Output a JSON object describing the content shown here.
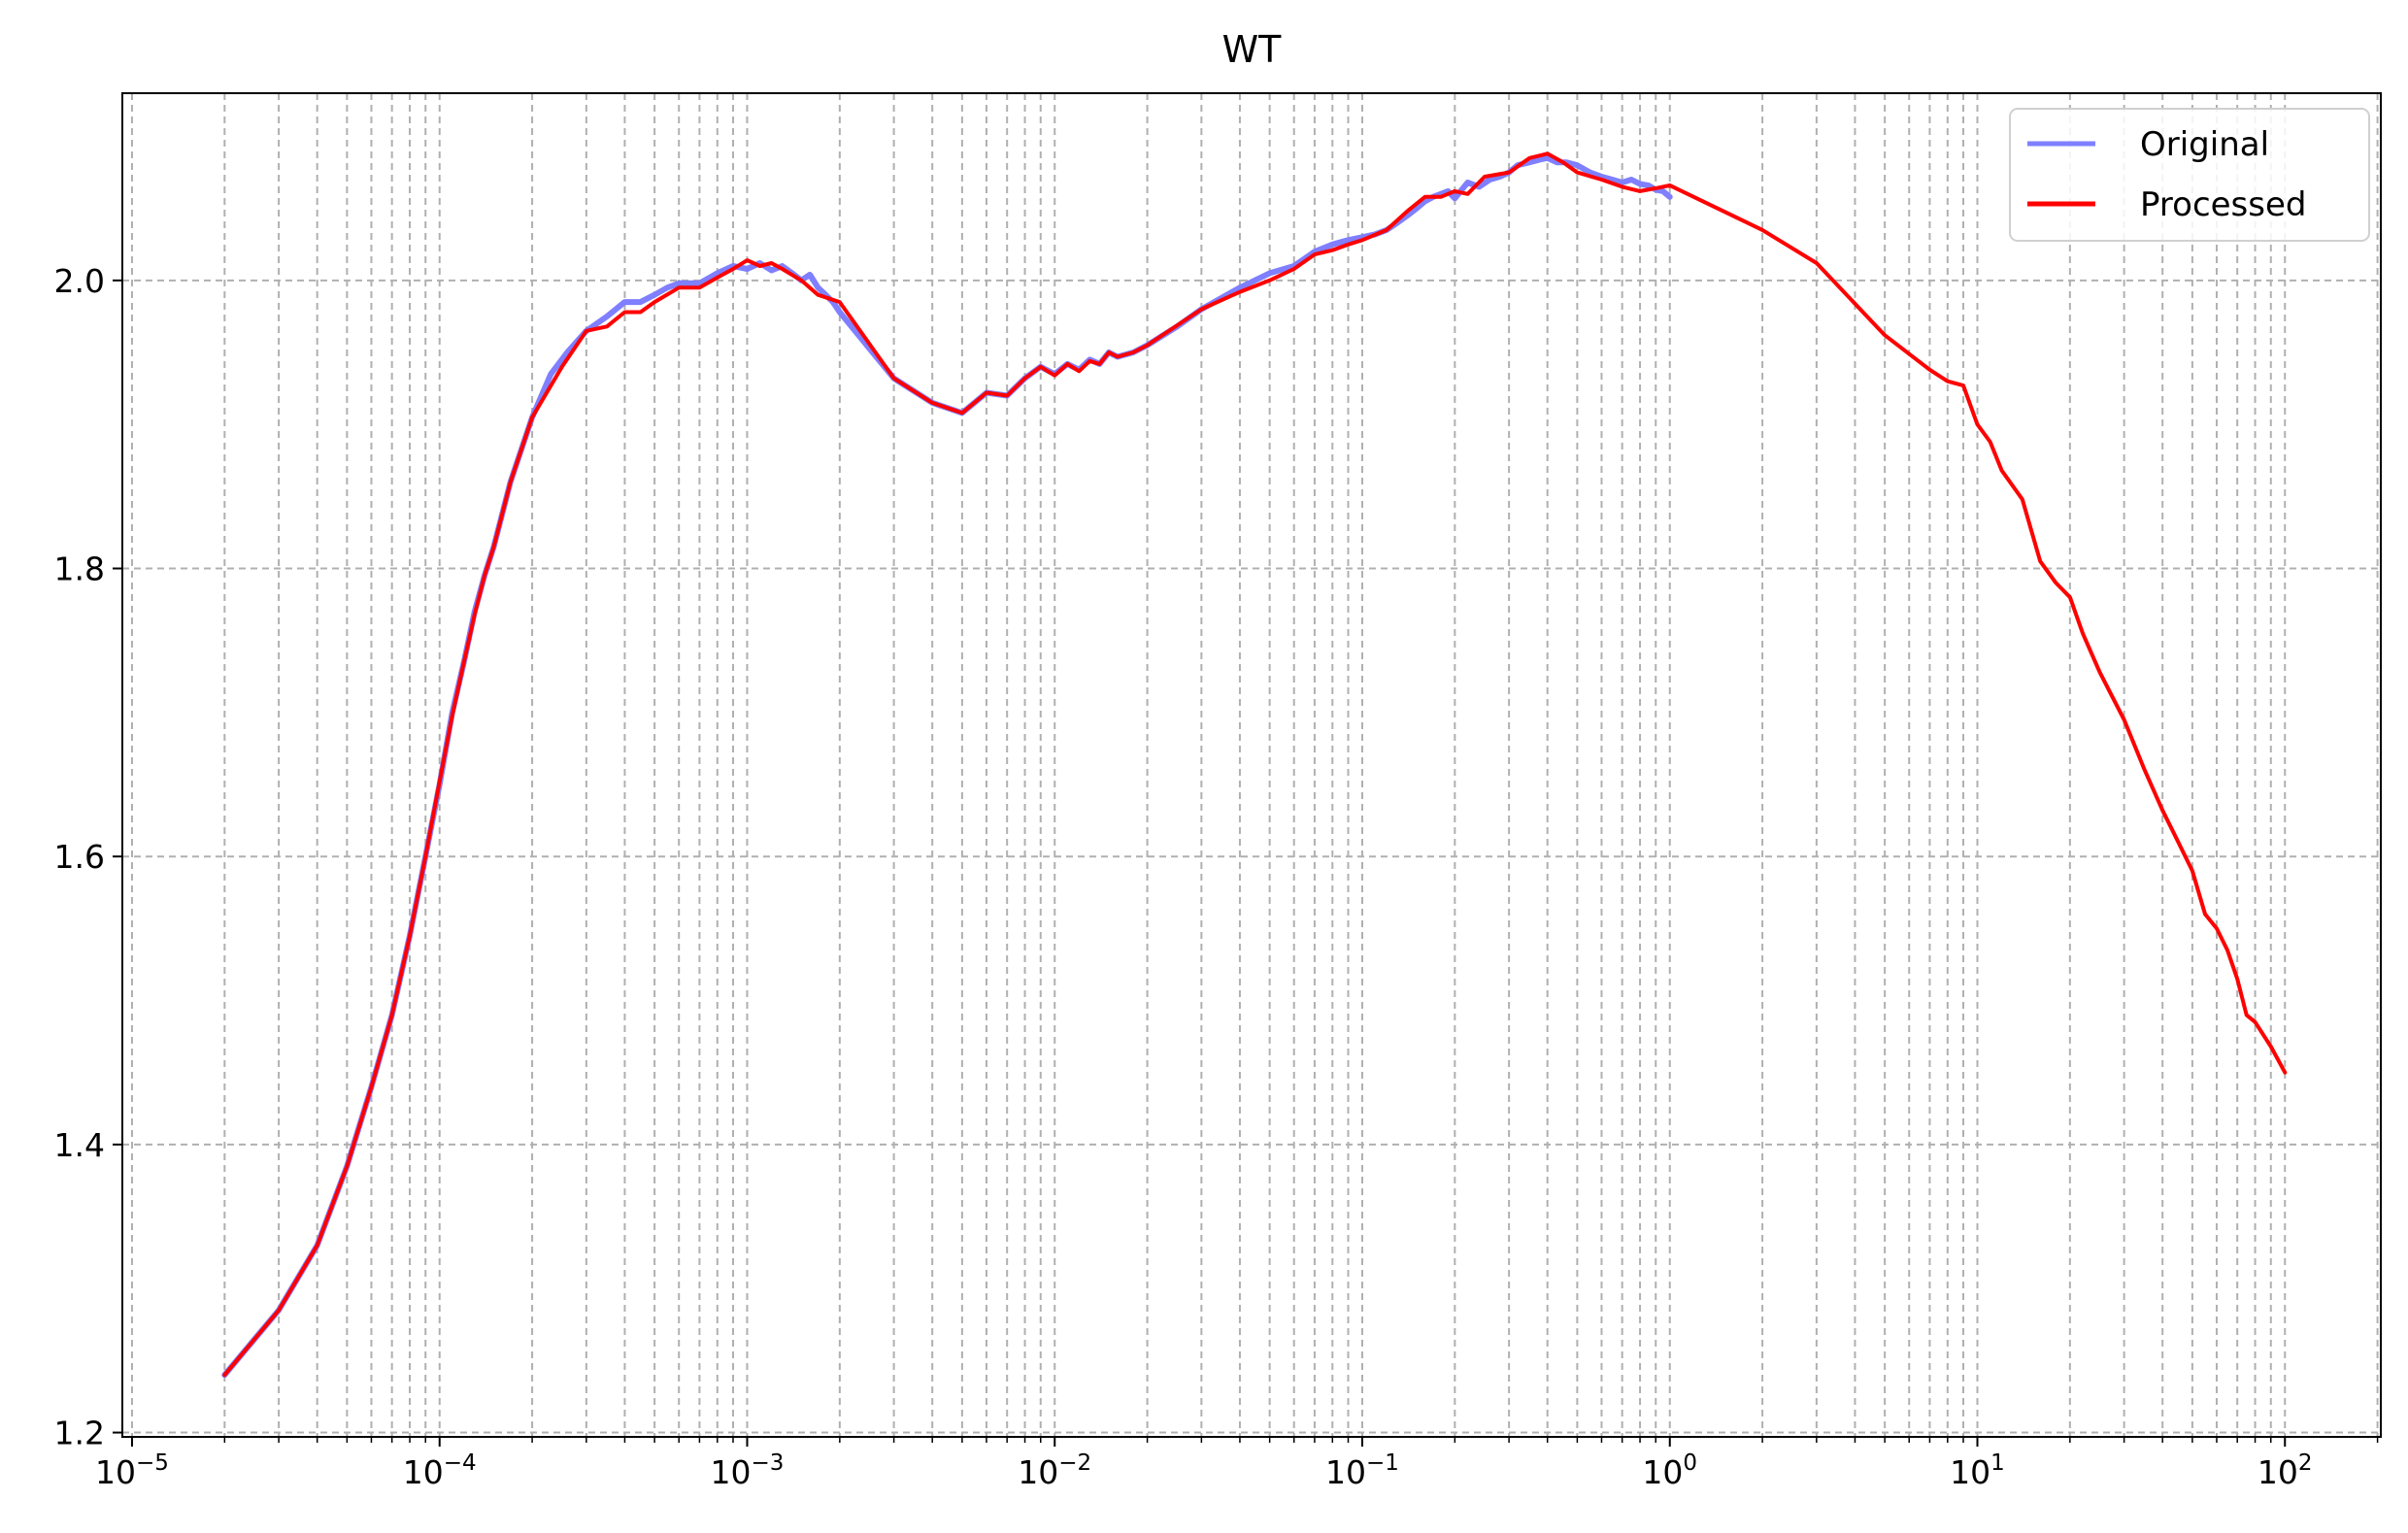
{
  "chart_data": {
    "type": "line",
    "title": "WT",
    "xlabel": "",
    "ylabel": "",
    "xscale": "log",
    "xlim": [
      9.3e-06,
      205
    ],
    "ylim": [
      1.197,
      2.13
    ],
    "x_ticks": [
      {
        "base": "10",
        "exp": "−5",
        "value": 1e-05
      },
      {
        "base": "10",
        "exp": "−4",
        "value": 0.0001
      },
      {
        "base": "10",
        "exp": "−3",
        "value": 0.001
      },
      {
        "base": "10",
        "exp": "−2",
        "value": 0.01
      },
      {
        "base": "10",
        "exp": "−1",
        "value": 0.1
      },
      {
        "base": "10",
        "exp": "0",
        "value": 1
      },
      {
        "base": "10",
        "exp": "1",
        "value": 10
      },
      {
        "base": "10",
        "exp": "2",
        "value": 100
      }
    ],
    "y_ticks": [
      {
        "label": "1.2",
        "value": 1.2
      },
      {
        "label": "1.4",
        "value": 1.4
      },
      {
        "label": "1.6",
        "value": 1.6
      },
      {
        "label": "1.8",
        "value": 1.8
      },
      {
        "label": "2.0",
        "value": 2.0
      }
    ],
    "grid": "major and minor, dashed",
    "legend_position": "top-right",
    "series": [
      {
        "name": "Original",
        "color": "#7f7fff",
        "x": [
          2e-05,
          3e-05,
          4e-05,
          5e-05,
          6e-05,
          7e-05,
          8e-05,
          9e-05,
          0.0001,
          0.00011,
          0.00012,
          0.00013,
          0.00014,
          0.00015,
          0.00017,
          0.0002,
          0.00023,
          0.00026,
          0.0003,
          0.00035,
          0.0004,
          0.00045,
          0.0005,
          0.00055,
          0.0006,
          0.0007,
          0.0008,
          0.0009,
          0.001,
          0.0011,
          0.0012,
          0.0013,
          0.0014,
          0.0015,
          0.0016,
          0.0017,
          0.0018,
          0.0019,
          0.002,
          0.003,
          0.004,
          0.005,
          0.006,
          0.007,
          0.008,
          0.009,
          0.01,
          0.011,
          0.012,
          0.013,
          0.014,
          0.015,
          0.016,
          0.018,
          0.02,
          0.025,
          0.03,
          0.04,
          0.05,
          0.06,
          0.07,
          0.08,
          0.09,
          0.1,
          0.11,
          0.12,
          0.13,
          0.14,
          0.15,
          0.16,
          0.17,
          0.18,
          0.19,
          0.2,
          0.22,
          0.24,
          0.26,
          0.28,
          0.3,
          0.32,
          0.35,
          0.38,
          0.4,
          0.43,
          0.46,
          0.5,
          0.55,
          0.6,
          0.65,
          0.7,
          0.75,
          0.8,
          0.85,
          0.9,
          0.95,
          1.0
        ],
        "y": [
          1.24,
          1.285,
          1.33,
          1.385,
          1.44,
          1.49,
          1.545,
          1.6,
          1.65,
          1.7,
          1.735,
          1.77,
          1.795,
          1.815,
          1.86,
          1.905,
          1.935,
          1.95,
          1.965,
          1.975,
          1.985,
          1.985,
          1.99,
          1.995,
          1.998,
          1.998,
          2.005,
          2.01,
          2.008,
          2.012,
          2.007,
          2.01,
          2.005,
          2.0,
          2.004,
          1.995,
          1.99,
          1.985,
          1.978,
          1.932,
          1.915,
          1.908,
          1.922,
          1.92,
          1.932,
          1.94,
          1.935,
          1.942,
          1.938,
          1.945,
          1.942,
          1.95,
          1.947,
          1.95,
          1.955,
          1.968,
          1.98,
          1.995,
          2.005,
          2.01,
          2.02,
          2.025,
          2.028,
          2.03,
          2.032,
          2.035,
          2.04,
          2.045,
          2.05,
          2.055,
          2.058,
          2.06,
          2.062,
          2.057,
          2.068,
          2.065,
          2.07,
          2.072,
          2.075,
          2.08,
          2.082,
          2.084,
          2.085,
          2.082,
          2.082,
          2.08,
          2.075,
          2.072,
          2.07,
          2.068,
          2.07,
          2.067,
          2.066,
          2.063,
          2.062,
          2.058
        ]
      },
      {
        "name": "Processed",
        "color": "#ff0000",
        "x": [
          2e-05,
          3e-05,
          4e-05,
          5e-05,
          6e-05,
          7e-05,
          8e-05,
          9e-05,
          0.0001,
          0.00011,
          0.00012,
          0.00013,
          0.00014,
          0.00015,
          0.00017,
          0.0002,
          0.00025,
          0.0003,
          0.00035,
          0.0004,
          0.00045,
          0.0005,
          0.0006,
          0.0007,
          0.0008,
          0.0009,
          0.001,
          0.0011,
          0.0012,
          0.0013,
          0.0015,
          0.0017,
          0.002,
          0.003,
          0.004,
          0.005,
          0.006,
          0.007,
          0.008,
          0.009,
          0.01,
          0.011,
          0.012,
          0.013,
          0.014,
          0.015,
          0.016,
          0.018,
          0.02,
          0.03,
          0.04,
          0.05,
          0.06,
          0.07,
          0.08,
          0.09,
          0.1,
          0.12,
          0.14,
          0.16,
          0.18,
          0.2,
          0.22,
          0.25,
          0.3,
          0.35,
          0.4,
          0.45,
          0.5,
          0.6,
          0.7,
          0.8,
          0.9,
          1.0,
          2.0,
          3.0,
          5.0,
          7.0,
          8.0,
          9.0,
          10.0,
          11.0,
          12.0,
          14.0,
          16.0,
          18.0,
          20.0,
          22.0,
          25.0,
          30.0,
          35.0,
          40.0,
          45.0,
          50.0,
          55.0,
          60.0,
          65.0,
          70.0,
          75.0,
          80.0,
          90.0,
          100.0
        ],
        "y": [
          1.24,
          1.285,
          1.33,
          1.385,
          1.44,
          1.49,
          1.545,
          1.6,
          1.652,
          1.698,
          1.735,
          1.768,
          1.795,
          1.815,
          1.86,
          1.905,
          1.94,
          1.965,
          1.968,
          1.978,
          1.978,
          1.985,
          1.995,
          1.995,
          2.002,
          2.008,
          2.014,
          2.01,
          2.012,
          2.008,
          2.0,
          1.99,
          1.985,
          1.932,
          1.915,
          1.908,
          1.922,
          1.92,
          1.932,
          1.94,
          1.934,
          1.942,
          1.937,
          1.944,
          1.942,
          1.95,
          1.947,
          1.95,
          1.955,
          1.98,
          1.992,
          2.0,
          2.008,
          2.018,
          2.021,
          2.025,
          2.028,
          2.035,
          2.048,
          2.058,
          2.058,
          2.062,
          2.06,
          2.072,
          2.075,
          2.085,
          2.088,
          2.082,
          2.075,
          2.07,
          2.065,
          2.062,
          2.064,
          2.066,
          2.035,
          2.012,
          1.962,
          1.938,
          1.93,
          1.927,
          1.9,
          1.888,
          1.868,
          1.848,
          1.805,
          1.79,
          1.78,
          1.755,
          1.728,
          1.695,
          1.66,
          1.632,
          1.61,
          1.59,
          1.56,
          1.55,
          1.535,
          1.515,
          1.49,
          1.485,
          1.468,
          1.45
        ]
      }
    ]
  }
}
